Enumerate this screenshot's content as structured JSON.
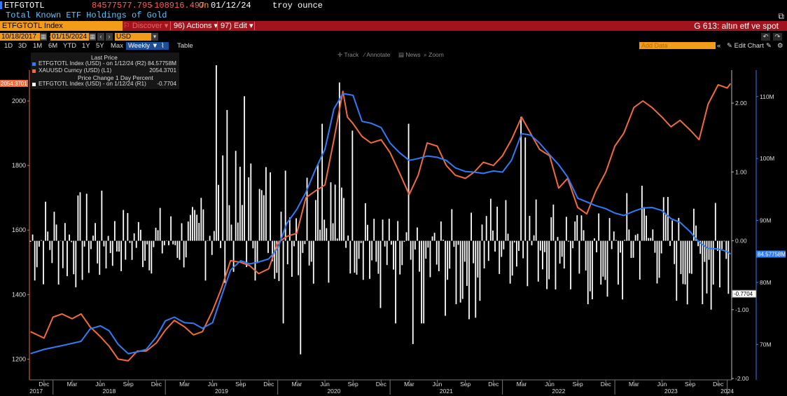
{
  "header": {
    "ticker": "ETFGTOTL",
    "last_value": "84577577.795",
    "change": "-108916.497",
    "on_label": "On",
    "date": "01/12/24",
    "unit": "troy ounce",
    "subtitle": "Total Known ETF Holdings of Gold"
  },
  "toolbar": {
    "index_label": "ETFGTOTL Index",
    "discover_label": "Discover",
    "actions_label": "Actions",
    "edit_label": "Edit",
    "actions_key": "96",
    "edit_key": "97",
    "page_title": "G 613: altın etf ve spot"
  },
  "dates": {
    "start": "10/18/2017",
    "end": "01/15/2024",
    "currency": "USD"
  },
  "periods": [
    "1D",
    "3D",
    "1M",
    "6M",
    "YTD",
    "1Y",
    "5Y",
    "Max"
  ],
  "frequency": "Weekly",
  "table_label": "Table",
  "add_data_placeholder": "Add Data",
  "edit_chart_label": "Edit Chart",
  "tools": [
    "Track",
    "Annotate",
    "News",
    "Zoom"
  ],
  "legend": {
    "title": "Last Price",
    "rows": [
      {
        "label": "ETFGTOTL Index (USD) - on 1/12/24 (R2)",
        "value": "84.57758M",
        "color": "#2f7cf6"
      },
      {
        "label": "XAUUSD Curncy (USD) (L1)",
        "value": "2054.3701",
        "color": "#f26b3a"
      }
    ],
    "subtitle": "Price Change 1 Day Percent",
    "bar_row": {
      "label": "ETFGTOTL Index (USD) - on 1/12/24 (R1)",
      "value": "-0.7704",
      "color": "#ffffff"
    }
  },
  "chart_data": {
    "type": "line",
    "left_axis": {
      "ticks": [
        1200,
        1400,
        1600,
        1800,
        2000
      ],
      "range": [
        1140,
        2100
      ],
      "current": "2054.3701",
      "color": "#f26b3a"
    },
    "r1_axis": {
      "ticks": [
        "2.00",
        "1.00",
        "0.00",
        "-1.00",
        "-2.00"
      ],
      "values": [
        2,
        1,
        0,
        -1,
        -2
      ],
      "range": [
        -2,
        2.5
      ],
      "current": "-0.7704"
    },
    "r2_axis": {
      "ticks": [
        "110M",
        "100M",
        "90M",
        "80M",
        "70M"
      ],
      "values": [
        110,
        100,
        90,
        80,
        70
      ],
      "range": [
        64.5,
        114.5
      ],
      "current": "84.57758M",
      "color": "#2f7cf6"
    },
    "x_axis": {
      "months": [
        "Dec",
        "Mar",
        "Jun",
        "Sep",
        "Dec",
        "Mar",
        "Jun",
        "Sep",
        "Dec",
        "Mar",
        "Jun",
        "Sep",
        "Dec",
        "Mar",
        "Jun",
        "Sep",
        "Dec",
        "Mar",
        "Jun",
        "Sep",
        "Dec",
        "Mar",
        "Jun",
        "Sep",
        "Dec"
      ],
      "month_pos": [
        2017.92,
        2018.17,
        2018.42,
        2018.67,
        2018.92,
        2019.17,
        2019.42,
        2019.67,
        2019.92,
        2020.17,
        2020.42,
        2020.67,
        2020.92,
        2021.17,
        2021.42,
        2021.67,
        2021.92,
        2022.17,
        2022.42,
        2022.67,
        2022.92,
        2023.17,
        2023.42,
        2023.67,
        2023.92
      ],
      "years": [
        "2017",
        "2018",
        "2019",
        "2020",
        "2021",
        "2022",
        "2023",
        "2024"
      ],
      "year_pos": [
        2017.85,
        2018.5,
        2019.5,
        2020.5,
        2021.5,
        2022.5,
        2023.5,
        2024.0
      ],
      "range": [
        2017.79,
        2024.04
      ]
    },
    "series": [
      {
        "name": "XAUUSD Curncy (USD) (L1)",
        "axis": "left",
        "color": "#f26b3a",
        "x": [
          2017.8,
          2017.92,
          2018.0,
          2018.08,
          2018.17,
          2018.25,
          2018.33,
          2018.42,
          2018.5,
          2018.58,
          2018.67,
          2018.75,
          2018.83,
          2018.92,
          2019.0,
          2019.08,
          2019.17,
          2019.25,
          2019.33,
          2019.42,
          2019.5,
          2019.58,
          2019.67,
          2019.75,
          2019.83,
          2019.92,
          2020.0,
          2020.08,
          2020.17,
          2020.25,
          2020.33,
          2020.42,
          2020.5,
          2020.58,
          2020.62,
          2020.67,
          2020.75,
          2020.83,
          2020.92,
          2021.0,
          2021.08,
          2021.17,
          2021.25,
          2021.33,
          2021.42,
          2021.5,
          2021.58,
          2021.67,
          2021.75,
          2021.83,
          2021.92,
          2022.0,
          2022.08,
          2022.17,
          2022.25,
          2022.33,
          2022.42,
          2022.5,
          2022.58,
          2022.67,
          2022.75,
          2022.83,
          2022.92,
          2023.0,
          2023.08,
          2023.17,
          2023.25,
          2023.33,
          2023.42,
          2023.5,
          2023.58,
          2023.67,
          2023.75,
          2023.83,
          2023.92,
          2024.0,
          2024.03
        ],
        "y": [
          1285,
          1265,
          1330,
          1340,
          1325,
          1340,
          1300,
          1270,
          1240,
          1200,
          1195,
          1225,
          1225,
          1250,
          1290,
          1320,
          1300,
          1275,
          1285,
          1350,
          1420,
          1505,
          1500,
          1490,
          1465,
          1480,
          1560,
          1580,
          1590,
          1700,
          1720,
          1740,
          1880,
          2030,
          1950,
          1930,
          1890,
          1870,
          1880,
          1840,
          1780,
          1710,
          1770,
          1870,
          1860,
          1800,
          1770,
          1760,
          1780,
          1810,
          1800,
          1830,
          1880,
          1950,
          1900,
          1850,
          1830,
          1730,
          1760,
          1670,
          1650,
          1720,
          1780,
          1860,
          1900,
          1980,
          2000,
          1980,
          1950,
          1920,
          1940,
          1910,
          1880,
          1990,
          2050,
          2040,
          2054
        ]
      },
      {
        "name": "ETFGTOTL Index (USD) - on 1/12/24 (R2)",
        "axis": "r2",
        "color": "#2f7cf6",
        "x": [
          2017.8,
          2017.92,
          2018.08,
          2018.25,
          2018.33,
          2018.42,
          2018.5,
          2018.58,
          2018.67,
          2018.75,
          2018.83,
          2018.92,
          2019.0,
          2019.08,
          2019.17,
          2019.25,
          2019.33,
          2019.42,
          2019.5,
          2019.58,
          2019.67,
          2019.75,
          2019.83,
          2019.92,
          2020.0,
          2020.08,
          2020.17,
          2020.25,
          2020.33,
          2020.42,
          2020.5,
          2020.58,
          2020.67,
          2020.75,
          2020.83,
          2020.92,
          2021.0,
          2021.08,
          2021.17,
          2021.25,
          2021.33,
          2021.42,
          2021.5,
          2021.58,
          2021.67,
          2021.75,
          2021.83,
          2021.92,
          2022.0,
          2022.08,
          2022.17,
          2022.25,
          2022.33,
          2022.42,
          2022.5,
          2022.58,
          2022.67,
          2022.75,
          2022.83,
          2022.92,
          2023.0,
          2023.08,
          2023.17,
          2023.25,
          2023.33,
          2023.42,
          2023.5,
          2023.58,
          2023.67,
          2023.75,
          2023.83,
          2023.92,
          2024.0,
          2024.03
        ],
        "y": [
          68.5,
          69.2,
          69.8,
          70.5,
          72.5,
          73.0,
          72.2,
          70.0,
          68.5,
          68.8,
          69.2,
          71.2,
          73.8,
          74.4,
          73.5,
          73.4,
          72.6,
          73.5,
          77.8,
          82.0,
          83.5,
          83.0,
          83.3,
          83.8,
          85.5,
          89.5,
          91.8,
          94.5,
          98.0,
          101.5,
          108.0,
          110.5,
          110.2,
          106.0,
          105.7,
          105.0,
          102.5,
          101.0,
          99.7,
          100.0,
          100.4,
          100.2,
          99.7,
          98.5,
          97.9,
          97.8,
          97.6,
          98.0,
          97.8,
          99.7,
          104.0,
          103.8,
          102.5,
          100.6,
          99.0,
          97.0,
          93.6,
          93.0,
          92.4,
          91.9,
          91.2,
          90.8,
          91.5,
          92.0,
          92.1,
          91.6,
          90.3,
          89.7,
          88.2,
          86.5,
          85.5,
          85.4,
          85.0,
          84.58
        ]
      },
      {
        "name": "ETFGTOTL Index (USD) - on 1/12/24 (R1)",
        "axis": "r1",
        "color": "#ffffff",
        "type": "bar",
        "note_values": "weekly percent change"
      }
    ]
  }
}
